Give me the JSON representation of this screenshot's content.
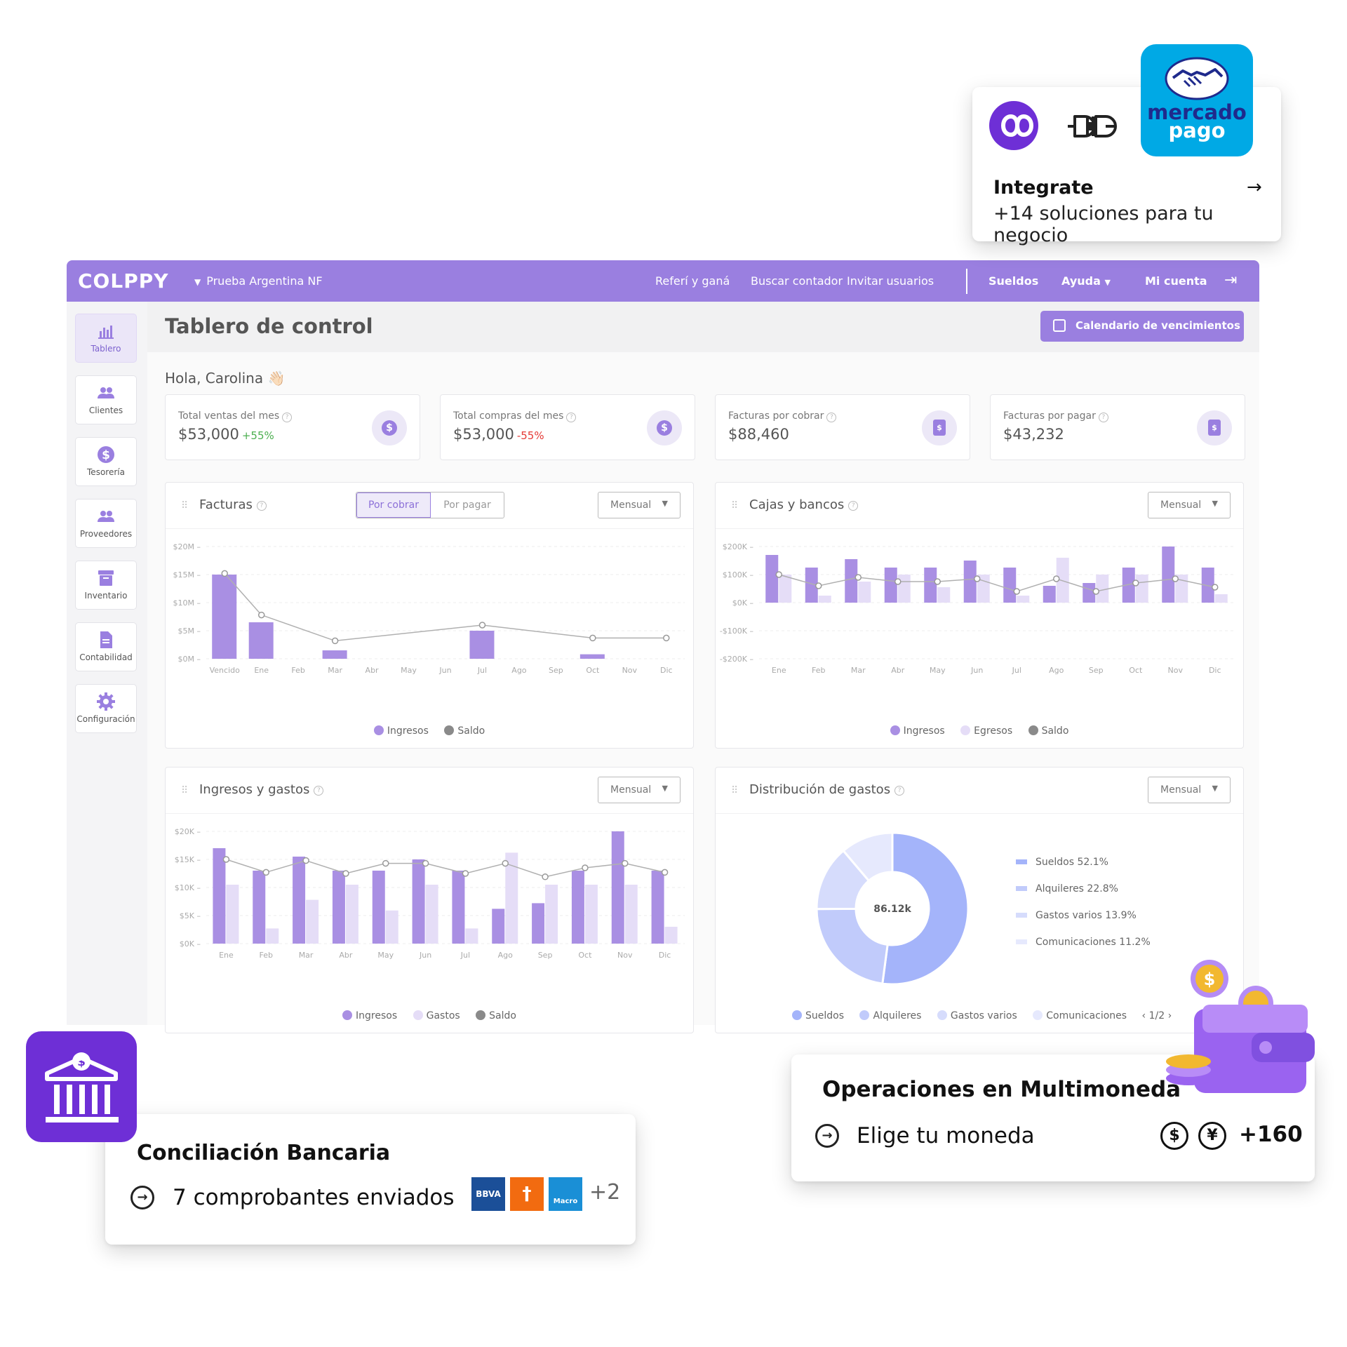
{
  "topbar": {
    "logo": "COLPPY",
    "company": "Prueba Argentina NF",
    "links": [
      "Referí y ganá",
      "Buscar contador",
      "Invitar usuarios"
    ],
    "bold_links": [
      "Sueldos",
      "Ayuda",
      "Mi cuenta"
    ]
  },
  "sidebar": {
    "items": [
      {
        "label": "Tablero",
        "icon": "bar-chart-icon"
      },
      {
        "label": "Clientes",
        "icon": "users-icon"
      },
      {
        "label": "Tesorería",
        "icon": "dollar-icon"
      },
      {
        "label": "Proveedores",
        "icon": "users-icon"
      },
      {
        "label": "Inventario",
        "icon": "archive-icon"
      },
      {
        "label": "Contabilidad",
        "icon": "document-icon"
      },
      {
        "label": "Configuración",
        "icon": "gear-icon"
      }
    ]
  },
  "header": {
    "title": "Tablero de control",
    "calendar_button": "Calendario de vencimientos"
  },
  "greeting": "Hola, Carolina 👋🏻",
  "stats": [
    {
      "label": "Total ventas del mes",
      "value": "$53,000",
      "delta": "+55%",
      "delta_color": "#4caf50"
    },
    {
      "label": "Total compras del mes",
      "value": "$53,000",
      "delta": "-55%",
      "delta_color": "#e53935"
    },
    {
      "label": "Facturas por cobrar",
      "value": "$88,460",
      "delta": ""
    },
    {
      "label": "Facturas por pagar",
      "value": "$43,232",
      "delta": ""
    }
  ],
  "cards": {
    "facturas": {
      "title": "Facturas",
      "seg1": "Por cobrar",
      "seg2": "Por pagar",
      "period": "Mensual"
    },
    "cajas": {
      "title": "Cajas y bancos",
      "period": "Mensual"
    },
    "ingresos": {
      "title": "Ingresos y gastos",
      "period": "Mensual"
    },
    "distribucion": {
      "title": "Distribución de gastos",
      "period": "Mensual",
      "pager": "1/2"
    }
  },
  "colors": {
    "accent": "#9a7fe0",
    "bar_dark": "#a98fe3",
    "bar_light": "#e5ddf7",
    "line": "#b0b0b0"
  },
  "chart_data": [
    {
      "type": "bar",
      "title": "Facturas",
      "categories": [
        "Vencido",
        "Ene",
        "Feb",
        "Mar",
        "Abr",
        "May",
        "Jun",
        "Jul",
        "Ago",
        "Sep",
        "Oct",
        "Nov",
        "Dic"
      ],
      "y_ticks": [
        "$20M",
        "$15M",
        "$10M",
        "$5M",
        "$0M"
      ],
      "ylim": [
        0,
        20
      ],
      "series": [
        {
          "name": "Ingresos",
          "values": [
            15,
            6.5,
            0,
            1.5,
            0,
            0,
            0,
            5,
            0,
            0,
            0.8,
            0,
            0
          ]
        },
        {
          "name": "Saldo",
          "values": [
            15.2,
            7.8,
            null,
            3.2,
            null,
            null,
            null,
            6,
            null,
            null,
            3.7,
            null,
            3.7
          ]
        }
      ]
    },
    {
      "type": "bar",
      "title": "Cajas y bancos",
      "categories": [
        "Ene",
        "Feb",
        "Mar",
        "Abr",
        "May",
        "Jun",
        "Jul",
        "Ago",
        "Sep",
        "Oct",
        "Nov",
        "Dic"
      ],
      "y_ticks": [
        "$200K",
        "$100K",
        "$0K",
        "-$100K",
        "-$200K"
      ],
      "ylim": [
        -200,
        200
      ],
      "series": [
        {
          "name": "Ingresos",
          "values": [
            170,
            125,
            155,
            125,
            125,
            150,
            125,
            60,
            70,
            125,
            200,
            125
          ]
        },
        {
          "name": "Egresos",
          "values": [
            100,
            25,
            75,
            100,
            55,
            100,
            25,
            160,
            100,
            100,
            100,
            30
          ]
        },
        {
          "name": "Saldo",
          "values": [
            100,
            60,
            90,
            75,
            75,
            85,
            40,
            85,
            40,
            70,
            85,
            55
          ]
        }
      ]
    },
    {
      "type": "bar",
      "title": "Ingresos y gastos",
      "categories": [
        "Ene",
        "Feb",
        "Mar",
        "Abr",
        "May",
        "Jun",
        "Jul",
        "Ago",
        "Sep",
        "Oct",
        "Nov",
        "Dic"
      ],
      "y_ticks": [
        "$20K",
        "$15K",
        "$10K",
        "$5K",
        "$0K"
      ],
      "ylim": [
        0,
        20
      ],
      "series": [
        {
          "name": "Ingresos",
          "values": [
            17,
            13,
            15.5,
            13,
            13,
            15,
            13,
            6.2,
            7.2,
            13,
            20,
            13
          ]
        },
        {
          "name": "Gastos",
          "values": [
            10.5,
            2.7,
            7.8,
            10.5,
            5.9,
            10.5,
            2.7,
            16.2,
            10.5,
            10.5,
            10.5,
            3
          ]
        },
        {
          "name": "Saldo",
          "values": [
            15,
            12.7,
            14.8,
            12.5,
            14.3,
            14.3,
            12.5,
            14.3,
            11.9,
            13.5,
            14.3,
            12.7
          ]
        }
      ]
    },
    {
      "type": "pie",
      "title": "Distribución de gastos",
      "center_label": "86.12k",
      "slices": [
        {
          "name": "Sueldos",
          "value": 52.1,
          "label": "Sueldos 52.1%",
          "color": "#a4b4fa"
        },
        {
          "name": "Alquileres",
          "value": 22.8,
          "label": "Alquileres 22.8%",
          "color": "#c1cbfb"
        },
        {
          "name": "Gastos varios",
          "value": 13.9,
          "label": "Gastos varios 13.9%",
          "color": "#d6dcfc"
        },
        {
          "name": "Comunicaciones",
          "value": 11.2,
          "label": "Comunicaciones 11.2%",
          "color": "#e6e9fd"
        }
      ]
    }
  ],
  "integrations_card": {
    "title": "Integrate",
    "subtitle": "+14 soluciones para tu negocio",
    "mp_line1": "mercado",
    "mp_line2": "pago"
  },
  "conciliacion_card": {
    "title": "Conciliación Bancaria",
    "text": "7 comprobantes enviados",
    "banks": [
      "BBVA",
      "",
      "Macro"
    ],
    "more": "+2"
  },
  "multimoneda_card": {
    "title": "Operaciones en Multimoneda",
    "text": "Elige tu moneda",
    "currencies": [
      "$",
      "¥"
    ],
    "more": "+160"
  }
}
